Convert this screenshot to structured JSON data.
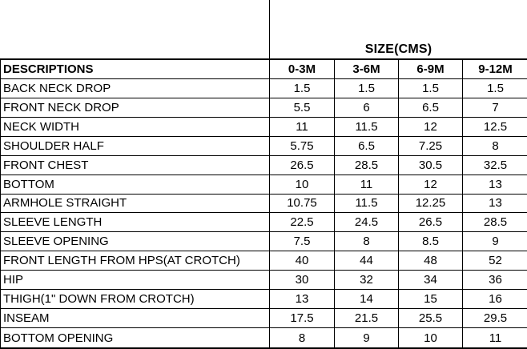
{
  "colors": {
    "background": "#ffffff",
    "border": "#000000",
    "text": "#000000"
  },
  "size_group_header": "SIZE(CMS)",
  "table": {
    "columns": [
      "DESCRIPTIONS",
      "0-3M",
      "3-6M",
      "6-9M",
      "9-12M"
    ],
    "rows": [
      {
        "label": "BACK NECK DROP",
        "values": [
          "1.5",
          "1.5",
          "1.5",
          "1.5"
        ]
      },
      {
        "label": "FRONT NECK DROP",
        "values": [
          "5.5",
          "6",
          "6.5",
          "7"
        ]
      },
      {
        "label": "NECK WIDTH",
        "values": [
          "11",
          "11.5",
          "12",
          "12.5"
        ]
      },
      {
        "label": "SHOULDER HALF",
        "values": [
          "5.75",
          "6.5",
          "7.25",
          "8"
        ]
      },
      {
        "label": "FRONT CHEST",
        "values": [
          "26.5",
          "28.5",
          "30.5",
          "32.5"
        ]
      },
      {
        "label": "BOTTOM",
        "values": [
          "10",
          "11",
          "12",
          "13"
        ]
      },
      {
        "label": "ARMHOLE STRAIGHT",
        "values": [
          "10.75",
          "11.5",
          "12.25",
          "13"
        ]
      },
      {
        "label": "SLEEVE LENGTH",
        "values": [
          "22.5",
          "24.5",
          "26.5",
          "28.5"
        ]
      },
      {
        "label": "SLEEVE OPENING",
        "values": [
          "7.5",
          "8",
          "8.5",
          "9"
        ]
      },
      {
        "label": "FRONT LENGTH FROM HPS(AT CROTCH)",
        "values": [
          "40",
          "44",
          "48",
          "52"
        ]
      },
      {
        "label": "HIP",
        "values": [
          "30",
          "32",
          "34",
          "36"
        ]
      },
      {
        "label": "THIGH(1\" DOWN FROM CROTCH)",
        "values": [
          "13",
          "14",
          "15",
          "16"
        ]
      },
      {
        "label": "INSEAM",
        "values": [
          "17.5",
          "21.5",
          "25.5",
          "29.5"
        ]
      },
      {
        "label": "BOTTOM OPENING",
        "values": [
          "8",
          "9",
          "10",
          "11"
        ]
      }
    ]
  }
}
